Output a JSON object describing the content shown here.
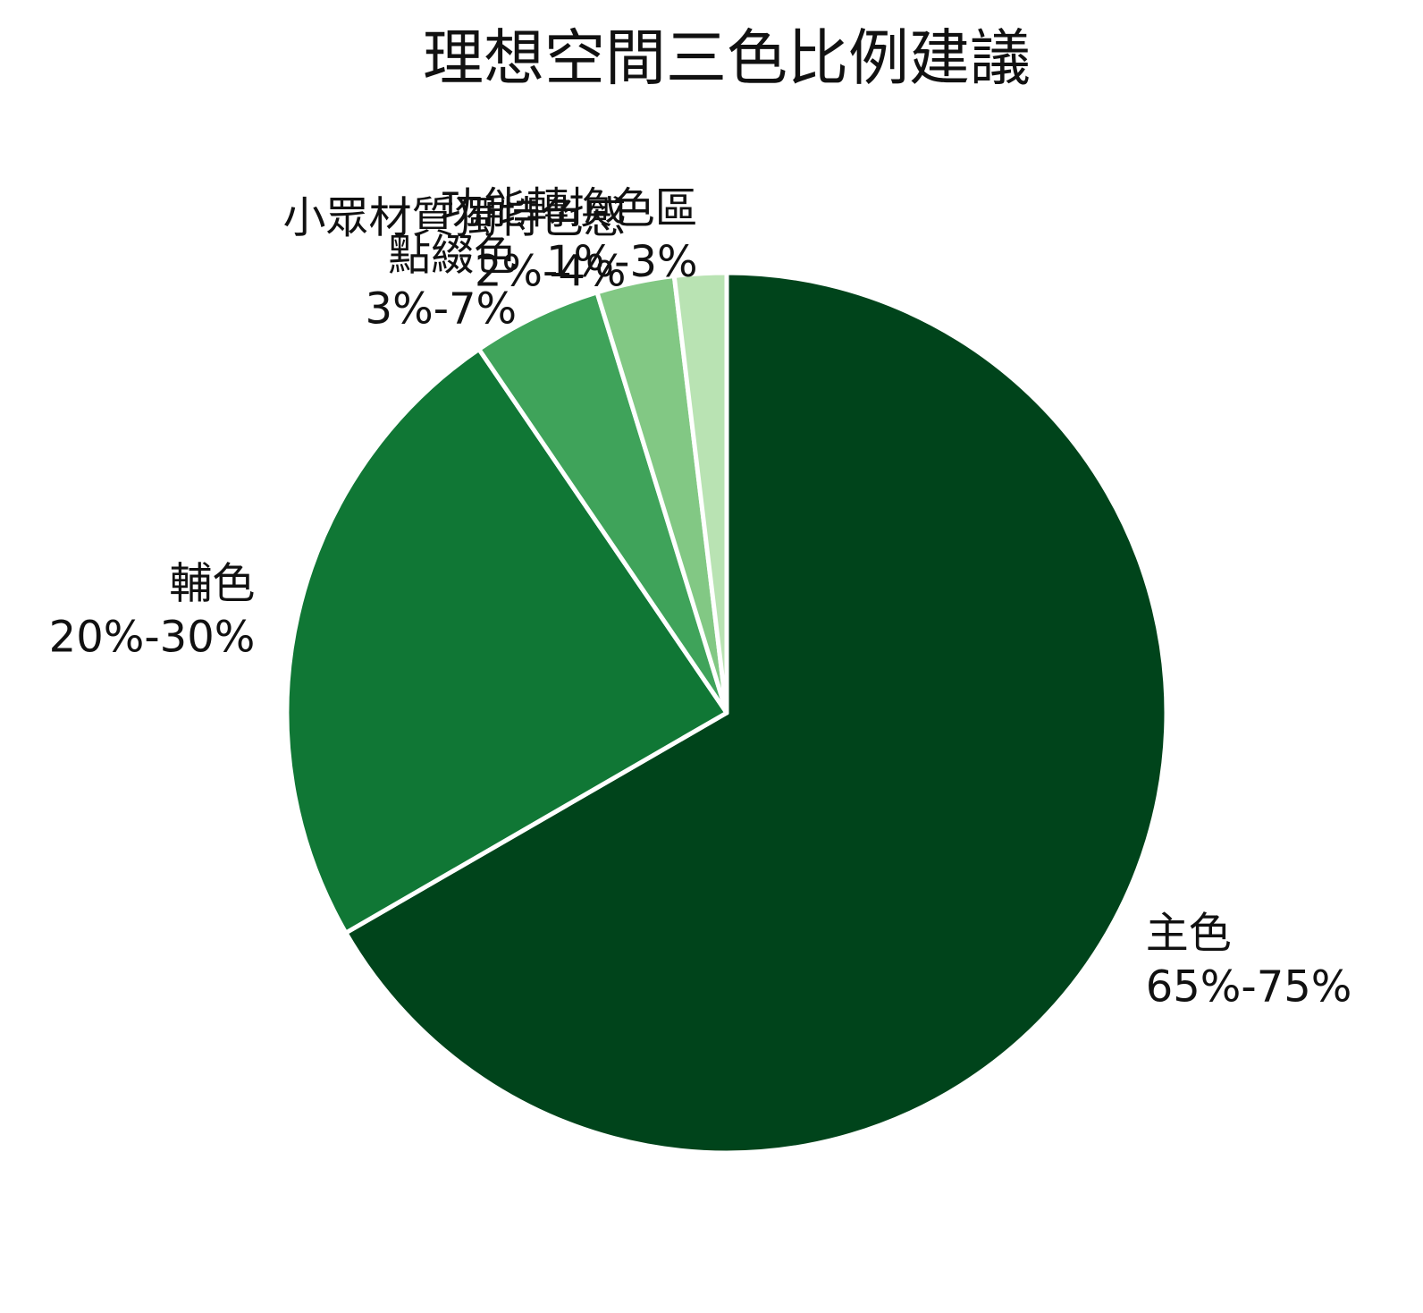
{
  "chart_data": {
    "type": "pie",
    "title": "理想空間三色比例建議",
    "categories": [
      "主色",
      "輔色",
      "點綴色",
      "小眾材質獨特色感",
      "功能轉換色區"
    ],
    "ranges": [
      "65%-75%",
      "20%-30%",
      "3%-7%",
      "2%-4%",
      "1%-3%"
    ],
    "values": [
      70,
      25,
      5,
      3,
      2
    ],
    "colors": [
      "#00441b",
      "#107735",
      "#3fa35a",
      "#82c884",
      "#b9e3b3"
    ]
  }
}
